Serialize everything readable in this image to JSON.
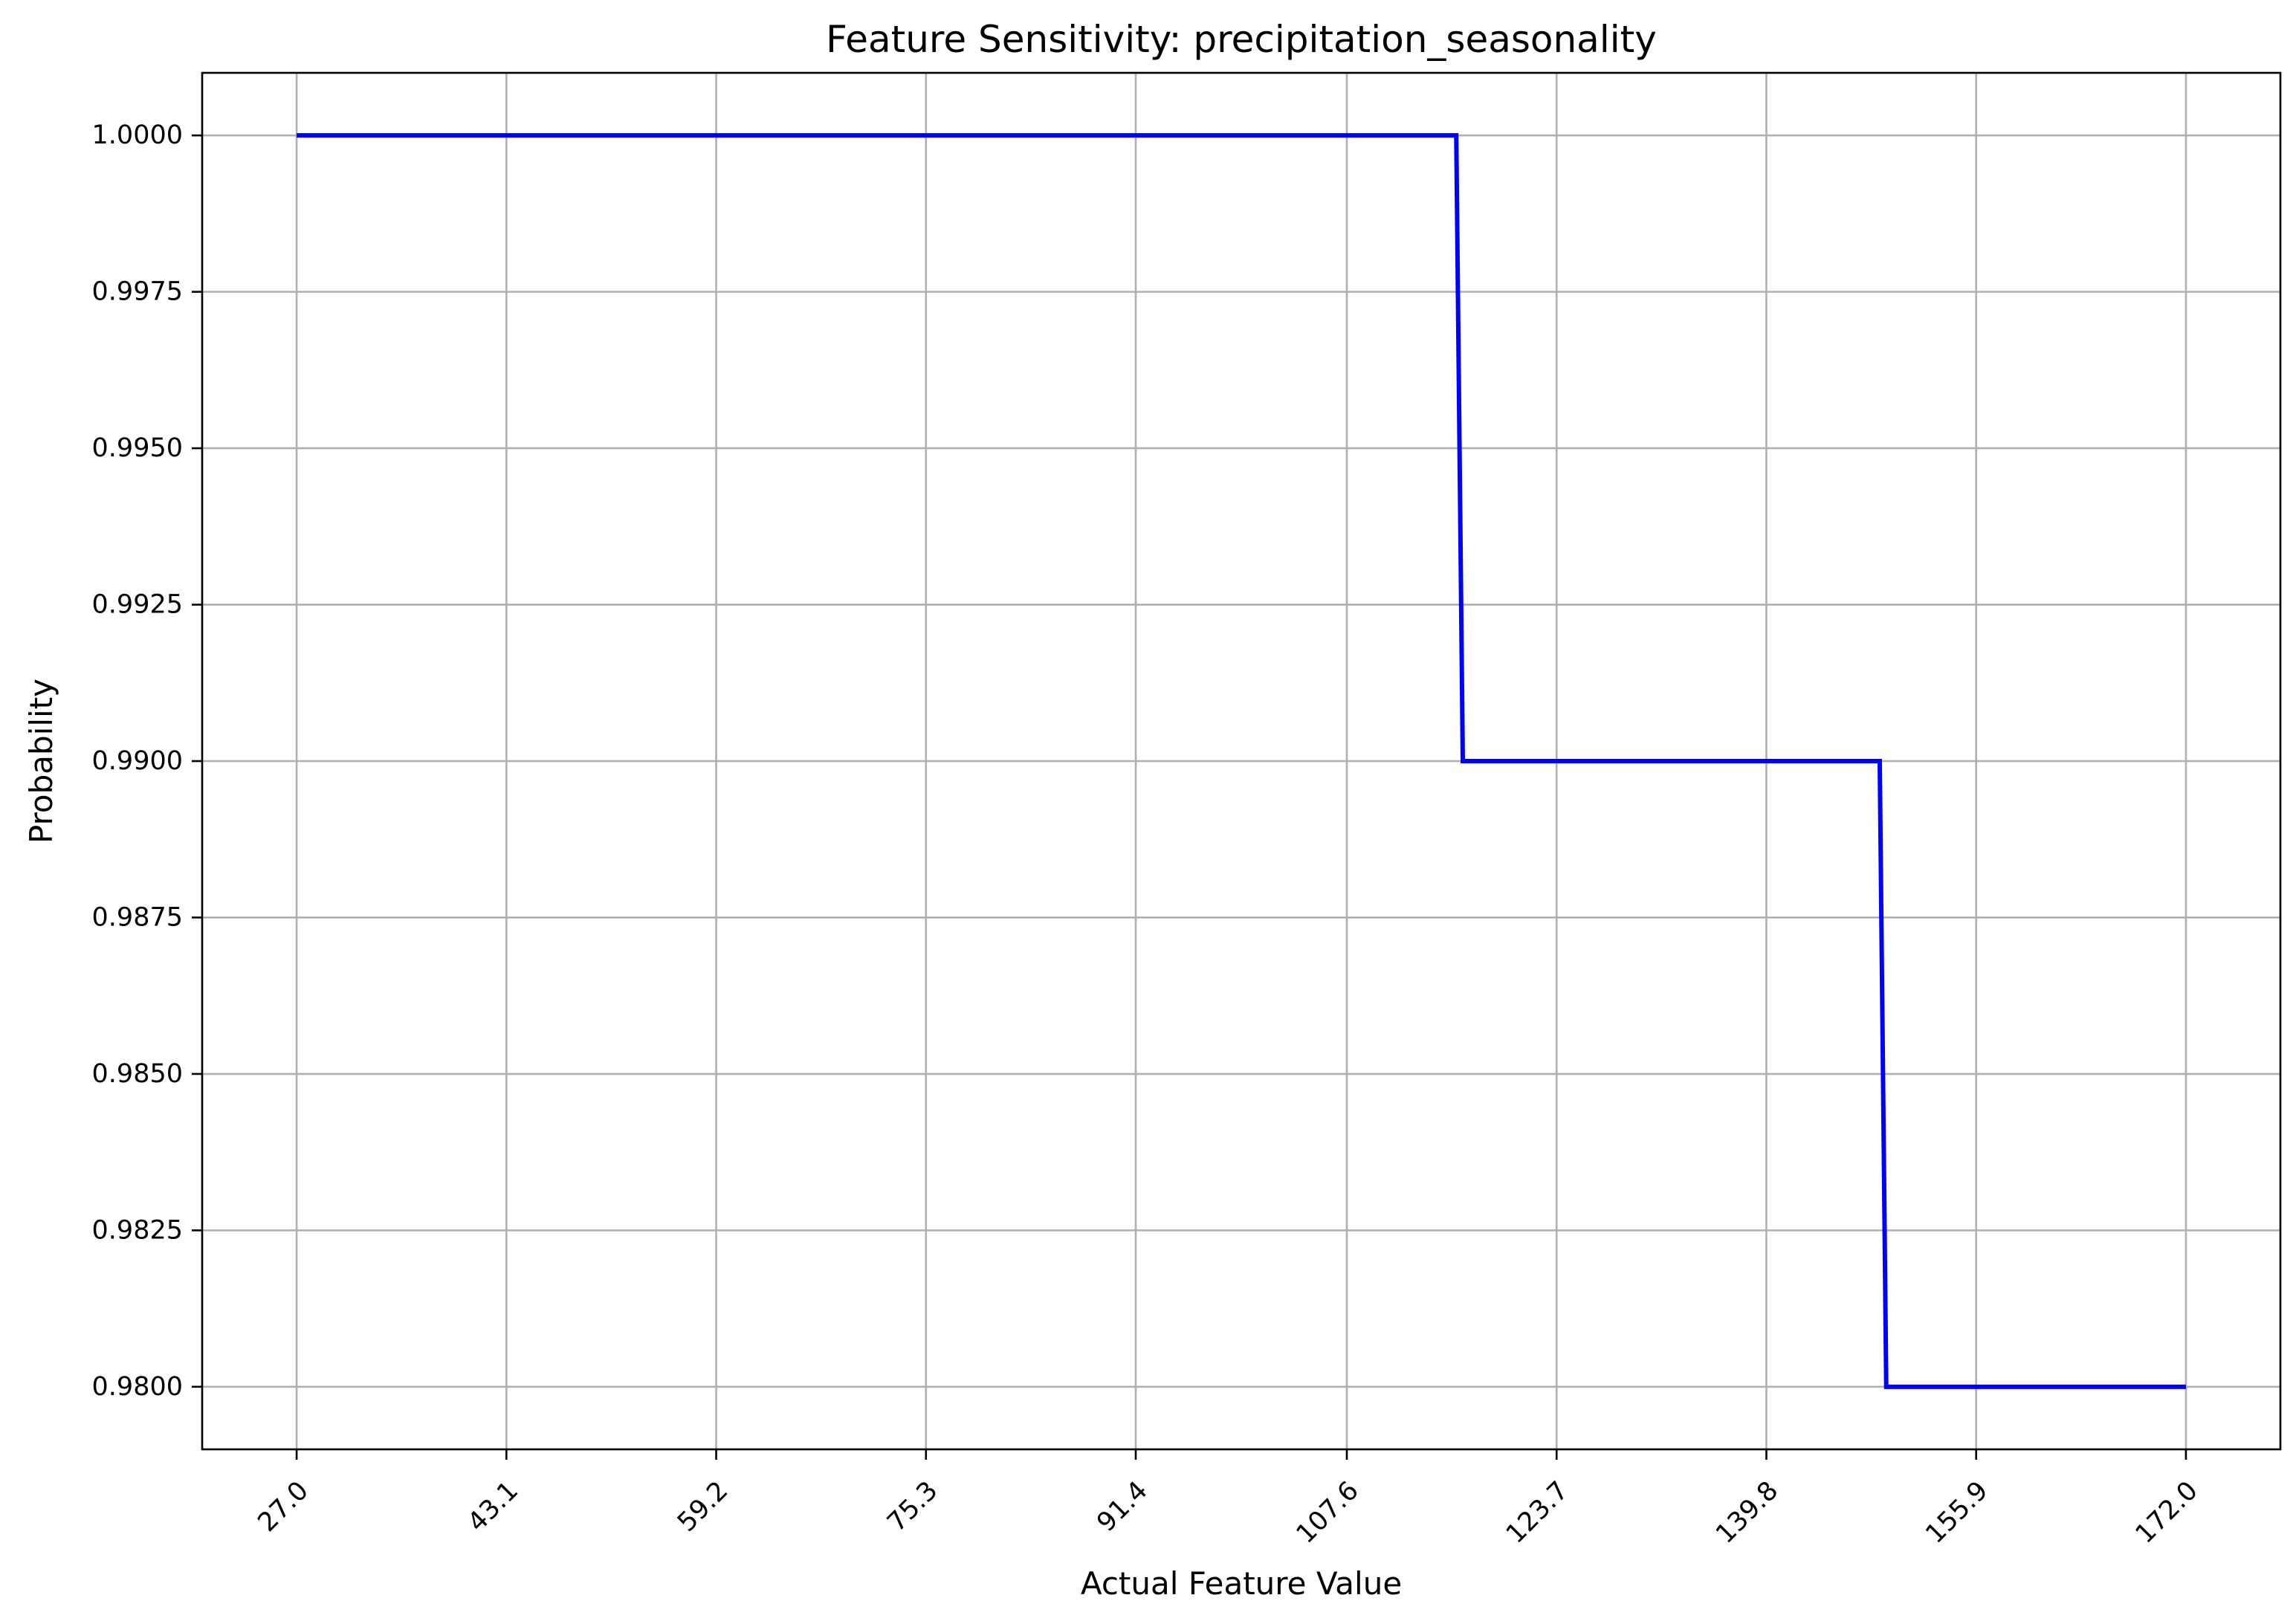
{
  "chart_data": {
    "type": "line",
    "title": "Feature Sensitivity: precipitation_seasonality",
    "xlabel": "Actual Feature Value",
    "ylabel": "Probability",
    "xlim": [
      19.75,
      179.25
    ],
    "ylim": [
      0.979,
      1.001
    ],
    "x_ticks": [
      "27.0",
      "43.1",
      "59.2",
      "75.3",
      "91.4",
      "107.6",
      "123.7",
      "139.8",
      "155.9",
      "172.0"
    ],
    "x_tick_values": [
      27.0,
      43.1,
      59.2,
      75.3,
      91.4,
      107.6,
      123.7,
      139.8,
      155.9,
      172.0
    ],
    "y_ticks": [
      "1.0000",
      "0.9975",
      "0.9950",
      "0.9925",
      "0.9900",
      "0.9875",
      "0.9850",
      "0.9825",
      "0.9800"
    ],
    "y_tick_values": [
      1.0,
      0.9975,
      0.995,
      0.9925,
      0.99,
      0.9875,
      0.985,
      0.9825,
      0.98
    ],
    "grid": true,
    "series": [
      {
        "color": "#0000ff",
        "x": [
          27.0,
          116.0,
          116.5,
          148.5,
          149.0,
          172.0
        ],
        "y": [
          1.0,
          1.0,
          0.99,
          0.99,
          0.98,
          0.98
        ]
      }
    ]
  }
}
